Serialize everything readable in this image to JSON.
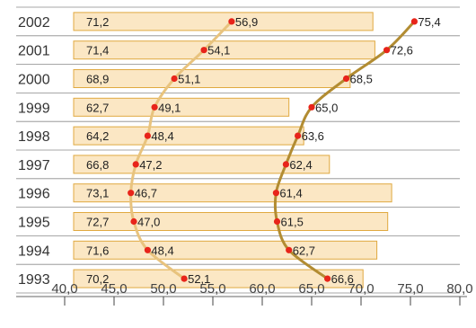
{
  "chart_data": {
    "type": "bar",
    "orientation": "horizontal",
    "categories": [
      "2002",
      "2001",
      "2000",
      "1999",
      "1998",
      "1997",
      "1996",
      "1995",
      "1994",
      "1993"
    ],
    "series": [
      {
        "values": [
          71.2,
          71.4,
          68.9,
          62.7,
          64.2,
          66.8,
          73.1,
          72.7,
          71.6,
          70.2
        ]
      },
      {
        "values": [
          56.9,
          54.1,
          51.1,
          49.1,
          48.4,
          47.2,
          46.7,
          47.0,
          48.4,
          52.1
        ]
      },
      {
        "values": [
          75.4,
          72.6,
          68.5,
          65.0,
          63.6,
          62.4,
          61.4,
          61.5,
          62.7,
          66.6
        ]
      }
    ],
    "series_styles": [
      {
        "kind": "bar",
        "fill": "#fbe7c4",
        "stroke": "#e0a940"
      },
      {
        "kind": "line",
        "color": "#e8c37e",
        "marker": "#e8241a"
      },
      {
        "kind": "line",
        "color": "#b28c32",
        "marker": "#e8241a"
      }
    ],
    "xlim": [
      40,
      80
    ],
    "x_ticks": [
      "40,0",
      "45,0",
      "50,0",
      "55,0",
      "60,0",
      "65,0",
      "70,0",
      "75,0",
      "80,0"
    ],
    "decimal_separator": ",",
    "grid": "row-separators",
    "title": "",
    "xlabel": "",
    "ylabel": ""
  }
}
